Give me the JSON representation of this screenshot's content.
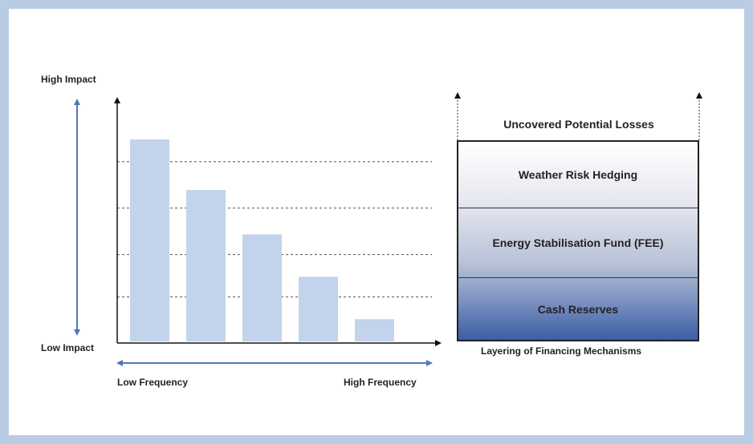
{
  "axis": {
    "high_impact": "High Impact",
    "low_impact": "Low Impact",
    "low_frequency": "Low Frequency",
    "high_frequency": "High Frequency"
  },
  "stack": {
    "top_label": "Uncovered Potential Losses",
    "layers": [
      {
        "label": "Weather Risk Hedging"
      },
      {
        "label": "Energy Stabilisation  Fund (FEE)"
      },
      {
        "label": "Cash  Reserves"
      }
    ],
    "caption": "Layering of Financing Mechanisms"
  },
  "chart_data": {
    "type": "bar",
    "categories": [
      "",
      "",
      "",
      "",
      ""
    ],
    "values": [
      100,
      75,
      53,
      32,
      11
    ],
    "ylim": [
      0,
      100
    ],
    "grid": "dashed",
    "bar_color": "#c3d3eb"
  },
  "colors": {
    "frame": "#b8cce4",
    "arrow": "#5177b8",
    "bar": "#c3d3eb"
  }
}
